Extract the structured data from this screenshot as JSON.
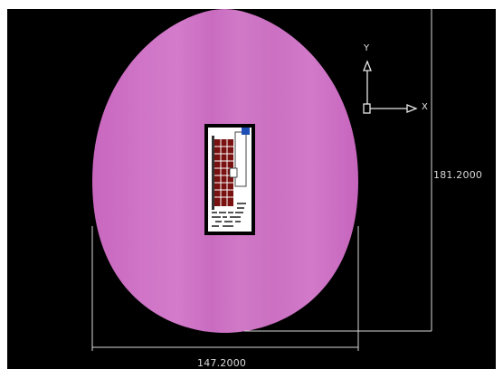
{
  "drawing": {
    "background_color": "#000000",
    "body_color": "#cc6fc3",
    "dimensions": {
      "height_value": "181.2000",
      "width_value": "147.2000"
    },
    "axes": {
      "y_label": "Y",
      "x_label": "X"
    },
    "component": {
      "board_color": "#ffffff",
      "pad_color": "#7a1111",
      "marker_color": "#1e4fb5"
    }
  }
}
